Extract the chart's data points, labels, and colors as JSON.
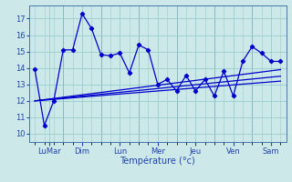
{
  "xlabel": "Température (°c)",
  "background_color": "#cce8e8",
  "grid_color": "#99cccc",
  "line_color": "#0000cc",
  "ylim": [
    9.5,
    17.8
  ],
  "xlim": [
    -0.3,
    13.3
  ],
  "x_major_labels": [
    "LuMar",
    "Dim",
    "Lun",
    "Mer",
    "Jeu",
    "Ven",
    "Sam"
  ],
  "x_major_positions": [
    0.75,
    2.5,
    4.5,
    6.5,
    8.5,
    10.5,
    12.5
  ],
  "x_sep_positions": [
    1.5,
    3.5,
    5.5,
    7.5,
    9.5,
    11.5
  ],
  "series1_x": [
    0,
    0.5,
    1.0,
    1.5,
    2.0,
    2.5,
    3.0,
    3.5,
    4.0,
    4.5,
    5.0,
    5.5,
    6.0,
    6.5,
    7.0,
    7.5,
    8.0,
    8.5,
    9.0,
    9.5,
    10.0,
    10.5,
    11.0,
    11.5,
    12.0,
    12.5,
    13.0
  ],
  "series1_y": [
    13.9,
    10.5,
    12.0,
    15.1,
    15.1,
    17.3,
    16.4,
    14.8,
    14.75,
    14.9,
    13.7,
    15.4,
    15.1,
    13.0,
    13.3,
    12.6,
    13.55,
    12.6,
    13.3,
    12.3,
    13.8,
    12.3,
    14.4,
    15.3,
    14.9,
    14.4,
    14.4
  ],
  "series2_x": [
    0,
    13.0
  ],
  "series2_y": [
    12.0,
    13.2
  ],
  "series3_x": [
    0,
    13.0
  ],
  "series3_y": [
    12.0,
    13.5
  ],
  "series4_x": [
    0,
    13.0
  ],
  "series4_y": [
    12.0,
    13.9
  ]
}
